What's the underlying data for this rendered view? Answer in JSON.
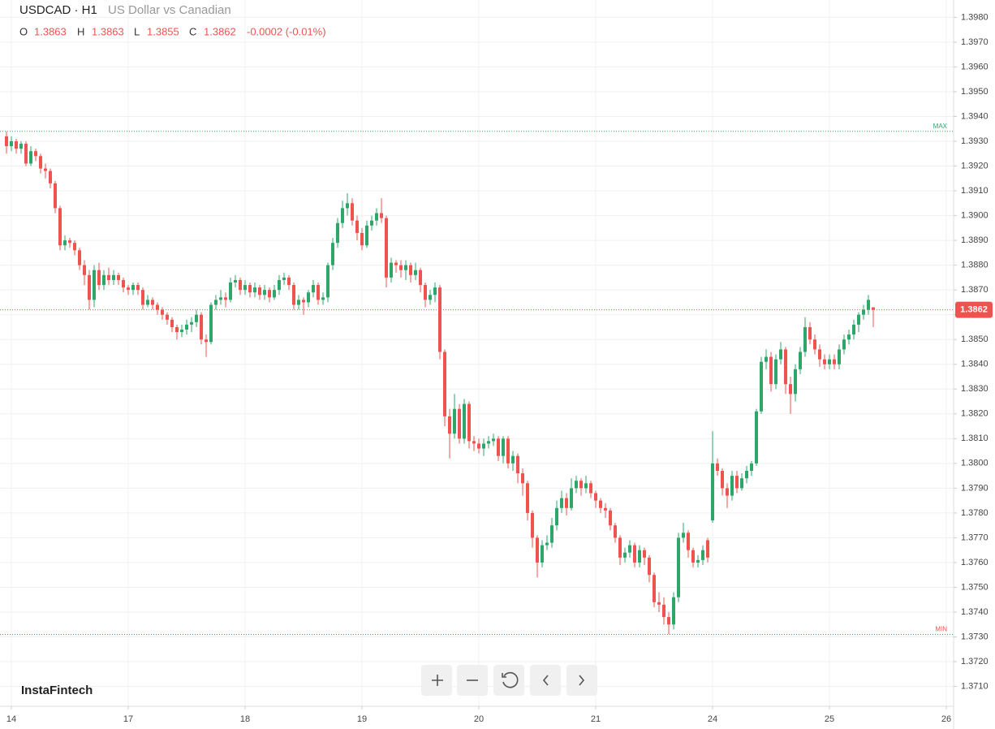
{
  "chart_data": {
    "type": "candlestick",
    "title": "USDCAD · H1",
    "subtitle": "US Dollar vs Canadian",
    "ohlc_labels": [
      "O",
      "H",
      "L",
      "C"
    ],
    "change": "-0.0002 (-0.01%)",
    "watermark": "InstaFintech",
    "max_label": "MAX",
    "max_value": 1.3934,
    "min_label": "MIN",
    "min_value": 1.3731,
    "up_color": "#2ea66a",
    "down_color": "#ef5350",
    "grid": true,
    "ylim": [
      1.3702,
      1.3987
    ],
    "xlim": [
      -1.33,
      194.5
    ],
    "yticks": [
      {
        "value": 1.371,
        "label": "1.3710"
      },
      {
        "value": 1.372,
        "label": "1.3720"
      },
      {
        "value": 1.373,
        "label": "1.3730"
      },
      {
        "value": 1.374,
        "label": "1.3740"
      },
      {
        "value": 1.375,
        "label": "1.3750"
      },
      {
        "value": 1.376,
        "label": "1.3760"
      },
      {
        "value": 1.377,
        "label": "1.3770"
      },
      {
        "value": 1.378,
        "label": "1.3780"
      },
      {
        "value": 1.379,
        "label": "1.3790"
      },
      {
        "value": 1.38,
        "label": "1.3800"
      },
      {
        "value": 1.381,
        "label": "1.3810"
      },
      {
        "value": 1.382,
        "label": "1.3820"
      },
      {
        "value": 1.383,
        "label": "1.3830"
      },
      {
        "value": 1.384,
        "label": "1.3840"
      },
      {
        "value": 1.385,
        "label": "1.3850"
      },
      {
        "value": 1.386,
        "label": "1.3860"
      },
      {
        "value": 1.387,
        "label": "1.3870"
      },
      {
        "value": 1.388,
        "label": "1.3880"
      },
      {
        "value": 1.389,
        "label": "1.3890"
      },
      {
        "value": 1.39,
        "label": "1.3900"
      },
      {
        "value": 1.391,
        "label": "1.3910"
      },
      {
        "value": 1.392,
        "label": "1.3920"
      },
      {
        "value": 1.393,
        "label": "1.3930"
      },
      {
        "value": 1.394,
        "label": "1.3940"
      },
      {
        "value": 1.395,
        "label": "1.3950"
      },
      {
        "value": 1.396,
        "label": "1.3960"
      },
      {
        "value": 1.397,
        "label": "1.3970"
      },
      {
        "value": 1.398,
        "label": "1.3980"
      }
    ],
    "xticks": [
      {
        "value": 1,
        "label": "14"
      },
      {
        "value": 25,
        "label": "17"
      },
      {
        "value": 49,
        "label": "18"
      },
      {
        "value": 73,
        "label": "19"
      },
      {
        "value": 97,
        "label": "20"
      },
      {
        "value": 121,
        "label": "21"
      },
      {
        "value": 145,
        "label": "24"
      },
      {
        "value": 169,
        "label": "25"
      },
      {
        "value": 193,
        "label": "26"
      }
    ],
    "candles": [
      [
        1.3932,
        1.3934,
        1.3925,
        1.3928
      ],
      [
        1.3928,
        1.3932,
        1.3926,
        1.393
      ],
      [
        1.393,
        1.3931,
        1.3925,
        1.3927
      ],
      [
        1.3927,
        1.393,
        1.3925,
        1.3929
      ],
      [
        1.3929,
        1.393,
        1.392,
        1.3921
      ],
      [
        1.3921,
        1.3928,
        1.392,
        1.3926
      ],
      [
        1.3926,
        1.3927,
        1.3922,
        1.3924
      ],
      [
        1.3924,
        1.3925,
        1.3917,
        1.3919
      ],
      [
        1.3919,
        1.3921,
        1.3915,
        1.3918
      ],
      [
        1.3918,
        1.3919,
        1.3911,
        1.3913
      ],
      [
        1.3913,
        1.3914,
        1.3901,
        1.3903
      ],
      [
        1.3903,
        1.3904,
        1.3886,
        1.3888
      ],
      [
        1.3888,
        1.3892,
        1.3886,
        1.389
      ],
      [
        1.389,
        1.3891,
        1.3887,
        1.3889
      ],
      [
        1.3889,
        1.389,
        1.3884,
        1.3886
      ],
      [
        1.3886,
        1.3887,
        1.3878,
        1.388
      ],
      [
        1.388,
        1.3882,
        1.3872,
        1.3876
      ],
      [
        1.3876,
        1.3878,
        1.3862,
        1.3866
      ],
      [
        1.3866,
        1.388,
        1.3863,
        1.3878
      ],
      [
        1.3878,
        1.3881,
        1.387,
        1.3872
      ],
      [
        1.3872,
        1.3878,
        1.387,
        1.3876
      ],
      [
        1.3876,
        1.3879,
        1.3872,
        1.3874
      ],
      [
        1.3874,
        1.3878,
        1.3872,
        1.3876
      ],
      [
        1.3876,
        1.3877,
        1.3872,
        1.3874
      ],
      [
        1.3874,
        1.3875,
        1.3869,
        1.3871
      ],
      [
        1.3871,
        1.3872,
        1.3868,
        1.387
      ],
      [
        1.387,
        1.3873,
        1.3868,
        1.3872
      ],
      [
        1.3872,
        1.3873,
        1.3868,
        1.387
      ],
      [
        1.387,
        1.3871,
        1.3862,
        1.3864
      ],
      [
        1.3864,
        1.3868,
        1.3863,
        1.3866
      ],
      [
        1.3866,
        1.3867,
        1.3862,
        1.3864
      ],
      [
        1.3864,
        1.3865,
        1.386,
        1.3862
      ],
      [
        1.3862,
        1.3863,
        1.3858,
        1.386
      ],
      [
        1.386,
        1.3861,
        1.3856,
        1.3858
      ],
      [
        1.3858,
        1.3859,
        1.3853,
        1.3855
      ],
      [
        1.3855,
        1.3856,
        1.385,
        1.3853
      ],
      [
        1.3853,
        1.3856,
        1.3851,
        1.3854
      ],
      [
        1.3854,
        1.3858,
        1.3852,
        1.3856
      ],
      [
        1.3856,
        1.3859,
        1.3853,
        1.3857
      ],
      [
        1.3857,
        1.3862,
        1.3855,
        1.386
      ],
      [
        1.386,
        1.3861,
        1.3848,
        1.385
      ],
      [
        1.385,
        1.3852,
        1.3843,
        1.3849
      ],
      [
        1.3849,
        1.3865,
        1.3848,
        1.3864
      ],
      [
        1.3864,
        1.3868,
        1.3862,
        1.3866
      ],
      [
        1.3866,
        1.387,
        1.3864,
        1.3867
      ],
      [
        1.3867,
        1.3869,
        1.3863,
        1.3866
      ],
      [
        1.3866,
        1.3875,
        1.3865,
        1.3873
      ],
      [
        1.3873,
        1.3876,
        1.3871,
        1.3874
      ],
      [
        1.3874,
        1.3875,
        1.3868,
        1.387
      ],
      [
        1.387,
        1.3874,
        1.3868,
        1.3872
      ],
      [
        1.3872,
        1.3873,
        1.3867,
        1.3869
      ],
      [
        1.3869,
        1.3873,
        1.3867,
        1.3871
      ],
      [
        1.3871,
        1.3872,
        1.3866,
        1.3868
      ],
      [
        1.3868,
        1.3872,
        1.3866,
        1.387
      ],
      [
        1.387,
        1.3871,
        1.3865,
        1.3867
      ],
      [
        1.3867,
        1.3872,
        1.3866,
        1.387
      ],
      [
        1.387,
        1.3876,
        1.3868,
        1.3874
      ],
      [
        1.3874,
        1.3877,
        1.3872,
        1.3875
      ],
      [
        1.3875,
        1.3876,
        1.387,
        1.3872
      ],
      [
        1.3872,
        1.3873,
        1.3862,
        1.3864
      ],
      [
        1.3864,
        1.3868,
        1.3862,
        1.3866
      ],
      [
        1.3866,
        1.3867,
        1.386,
        1.3865
      ],
      [
        1.3865,
        1.387,
        1.3863,
        1.3869
      ],
      [
        1.3869,
        1.3874,
        1.3867,
        1.3872
      ],
      [
        1.3872,
        1.3873,
        1.3864,
        1.3866
      ],
      [
        1.3866,
        1.3869,
        1.3864,
        1.3867
      ],
      [
        1.3867,
        1.3881,
        1.3865,
        1.388
      ],
      [
        1.388,
        1.3891,
        1.3878,
        1.3889
      ],
      [
        1.3889,
        1.3899,
        1.3887,
        1.3897
      ],
      [
        1.3897,
        1.3906,
        1.3895,
        1.3903
      ],
      [
        1.3903,
        1.3909,
        1.39,
        1.3905
      ],
      [
        1.3905,
        1.3907,
        1.3896,
        1.3898
      ],
      [
        1.3898,
        1.39,
        1.389,
        1.3893
      ],
      [
        1.3893,
        1.3895,
        1.3886,
        1.3888
      ],
      [
        1.3888,
        1.3898,
        1.3887,
        1.3896
      ],
      [
        1.3896,
        1.39,
        1.3894,
        1.3898
      ],
      [
        1.3898,
        1.3903,
        1.3896,
        1.3901
      ],
      [
        1.3901,
        1.3907,
        1.3897,
        1.3899
      ],
      [
        1.3899,
        1.39,
        1.3871,
        1.3875
      ],
      [
        1.3875,
        1.3883,
        1.3873,
        1.3881
      ],
      [
        1.3881,
        1.3882,
        1.3877,
        1.388
      ],
      [
        1.388,
        1.3882,
        1.3875,
        1.3878
      ],
      [
        1.3878,
        1.3882,
        1.3874,
        1.388
      ],
      [
        1.388,
        1.3881,
        1.3873,
        1.3876
      ],
      [
        1.3876,
        1.3881,
        1.3874,
        1.3878
      ],
      [
        1.3878,
        1.3879,
        1.3869,
        1.3872
      ],
      [
        1.3872,
        1.3873,
        1.3863,
        1.3866
      ],
      [
        1.3866,
        1.387,
        1.3864,
        1.3868
      ],
      [
        1.3868,
        1.3873,
        1.3865,
        1.3871
      ],
      [
        1.3871,
        1.3872,
        1.3842,
        1.3845
      ],
      [
        1.3845,
        1.3846,
        1.3815,
        1.3819
      ],
      [
        1.3819,
        1.3822,
        1.3802,
        1.3812
      ],
      [
        1.3812,
        1.3828,
        1.381,
        1.3822
      ],
      [
        1.3822,
        1.3824,
        1.3808,
        1.381
      ],
      [
        1.381,
        1.3826,
        1.3808,
        1.3824
      ],
      [
        1.3824,
        1.3825,
        1.3806,
        1.3809
      ],
      [
        1.3809,
        1.3811,
        1.3805,
        1.3808
      ],
      [
        1.3808,
        1.381,
        1.3804,
        1.3806
      ],
      [
        1.3806,
        1.381,
        1.3803,
        1.3808
      ],
      [
        1.3808,
        1.3811,
        1.3806,
        1.3809
      ],
      [
        1.3809,
        1.3812,
        1.3807,
        1.381
      ],
      [
        1.381,
        1.3811,
        1.3801,
        1.3803
      ],
      [
        1.3803,
        1.3811,
        1.38,
        1.381
      ],
      [
        1.381,
        1.3811,
        1.3798,
        1.38
      ],
      [
        1.38,
        1.3805,
        1.3797,
        1.3803
      ],
      [
        1.3803,
        1.3804,
        1.3792,
        1.3796
      ],
      [
        1.3796,
        1.3798,
        1.3787,
        1.3792
      ],
      [
        1.3792,
        1.3793,
        1.3777,
        1.378
      ],
      [
        1.378,
        1.3781,
        1.3766,
        1.377
      ],
      [
        1.377,
        1.3771,
        1.3754,
        1.376
      ],
      [
        1.376,
        1.3769,
        1.3758,
        1.3767
      ],
      [
        1.3767,
        1.3771,
        1.3765,
        1.3768
      ],
      [
        1.3768,
        1.3778,
        1.3766,
        1.3775
      ],
      [
        1.3775,
        1.3785,
        1.3773,
        1.3782
      ],
      [
        1.3782,
        1.3789,
        1.378,
        1.3786
      ],
      [
        1.3786,
        1.3788,
        1.3779,
        1.3782
      ],
      [
        1.3782,
        1.3794,
        1.3781,
        1.379
      ],
      [
        1.379,
        1.3795,
        1.3788,
        1.3793
      ],
      [
        1.3793,
        1.3794,
        1.3787,
        1.379
      ],
      [
        1.379,
        1.3795,
        1.3788,
        1.3792
      ],
      [
        1.3792,
        1.3793,
        1.3786,
        1.3788
      ],
      [
        1.3788,
        1.3789,
        1.3782,
        1.3785
      ],
      [
        1.3785,
        1.3786,
        1.378,
        1.3782
      ],
      [
        1.3782,
        1.3784,
        1.3778,
        1.3781
      ],
      [
        1.3781,
        1.3782,
        1.3773,
        1.3775
      ],
      [
        1.3775,
        1.3776,
        1.3768,
        1.377
      ],
      [
        1.377,
        1.3771,
        1.3759,
        1.3762
      ],
      [
        1.3762,
        1.3766,
        1.376,
        1.3764
      ],
      [
        1.3764,
        1.3769,
        1.3762,
        1.3767
      ],
      [
        1.3767,
        1.3768,
        1.3758,
        1.376
      ],
      [
        1.376,
        1.3767,
        1.3758,
        1.3765
      ],
      [
        1.3765,
        1.3766,
        1.3759,
        1.3762
      ],
      [
        1.3762,
        1.3763,
        1.3752,
        1.3755
      ],
      [
        1.3755,
        1.3756,
        1.3742,
        1.3744
      ],
      [
        1.3744,
        1.3748,
        1.374,
        1.3743
      ],
      [
        1.3743,
        1.3746,
        1.3735,
        1.3738
      ],
      [
        1.3738,
        1.374,
        1.3731,
        1.3735
      ],
      [
        1.3735,
        1.3748,
        1.3733,
        1.3746
      ],
      [
        1.3746,
        1.3772,
        1.3744,
        1.377
      ],
      [
        1.377,
        1.3776,
        1.3768,
        1.3772
      ],
      [
        1.3772,
        1.3773,
        1.3762,
        1.3765
      ],
      [
        1.3765,
        1.3766,
        1.3758,
        1.376
      ],
      [
        1.376,
        1.3763,
        1.3758,
        1.3761
      ],
      [
        1.3761,
        1.3767,
        1.3759,
        1.3765
      ],
      [
        1.3769,
        1.377,
        1.376,
        1.3762
      ],
      [
        1.3777,
        1.3813,
        1.3776,
        1.38
      ],
      [
        1.38,
        1.3802,
        1.3795,
        1.3797
      ],
      [
        1.3797,
        1.3798,
        1.3787,
        1.379
      ],
      [
        1.379,
        1.3792,
        1.3782,
        1.3787
      ],
      [
        1.3787,
        1.3797,
        1.3785,
        1.3795
      ],
      [
        1.3795,
        1.3797,
        1.3788,
        1.379
      ],
      [
        1.379,
        1.3796,
        1.3789,
        1.3794
      ],
      [
        1.3794,
        1.3799,
        1.3792,
        1.3797
      ],
      [
        1.3797,
        1.3801,
        1.3795,
        1.38
      ],
      [
        1.38,
        1.3822,
        1.3799,
        1.3821
      ],
      [
        1.3821,
        1.3843,
        1.382,
        1.3841
      ],
      [
        1.3841,
        1.3846,
        1.3838,
        1.3843
      ],
      [
        1.3843,
        1.3845,
        1.3829,
        1.3832
      ],
      [
        1.3832,
        1.3844,
        1.383,
        1.3842
      ],
      [
        1.3842,
        1.3849,
        1.384,
        1.3846
      ],
      [
        1.3846,
        1.3847,
        1.3828,
        1.3832
      ],
      [
        1.3832,
        1.3835,
        1.382,
        1.3828
      ],
      [
        1.3828,
        1.384,
        1.3825,
        1.3838
      ],
      [
        1.3838,
        1.3847,
        1.3836,
        1.3845
      ],
      [
        1.3845,
        1.3859,
        1.3843,
        1.3855
      ],
      [
        1.3855,
        1.3857,
        1.3848,
        1.385
      ],
      [
        1.385,
        1.3852,
        1.3844,
        1.3846
      ],
      [
        1.3846,
        1.3848,
        1.3839,
        1.3842
      ],
      [
        1.3842,
        1.3844,
        1.3838,
        1.384
      ],
      [
        1.384,
        1.3844,
        1.3838,
        1.3842
      ],
      [
        1.3842,
        1.3844,
        1.3838,
        1.384
      ],
      [
        1.384,
        1.3848,
        1.3838,
        1.3846
      ],
      [
        1.3846,
        1.3852,
        1.3844,
        1.385
      ],
      [
        1.385,
        1.3854,
        1.3848,
        1.3852
      ],
      [
        1.3852,
        1.3858,
        1.385,
        1.3856
      ],
      [
        1.3856,
        1.3861,
        1.3853,
        1.386
      ],
      [
        1.386,
        1.3864,
        1.3858,
        1.3862
      ],
      [
        1.3862,
        1.3868,
        1.386,
        1.3866
      ],
      [
        1.3863,
        1.3863,
        1.3855,
        1.3862
      ]
    ]
  }
}
